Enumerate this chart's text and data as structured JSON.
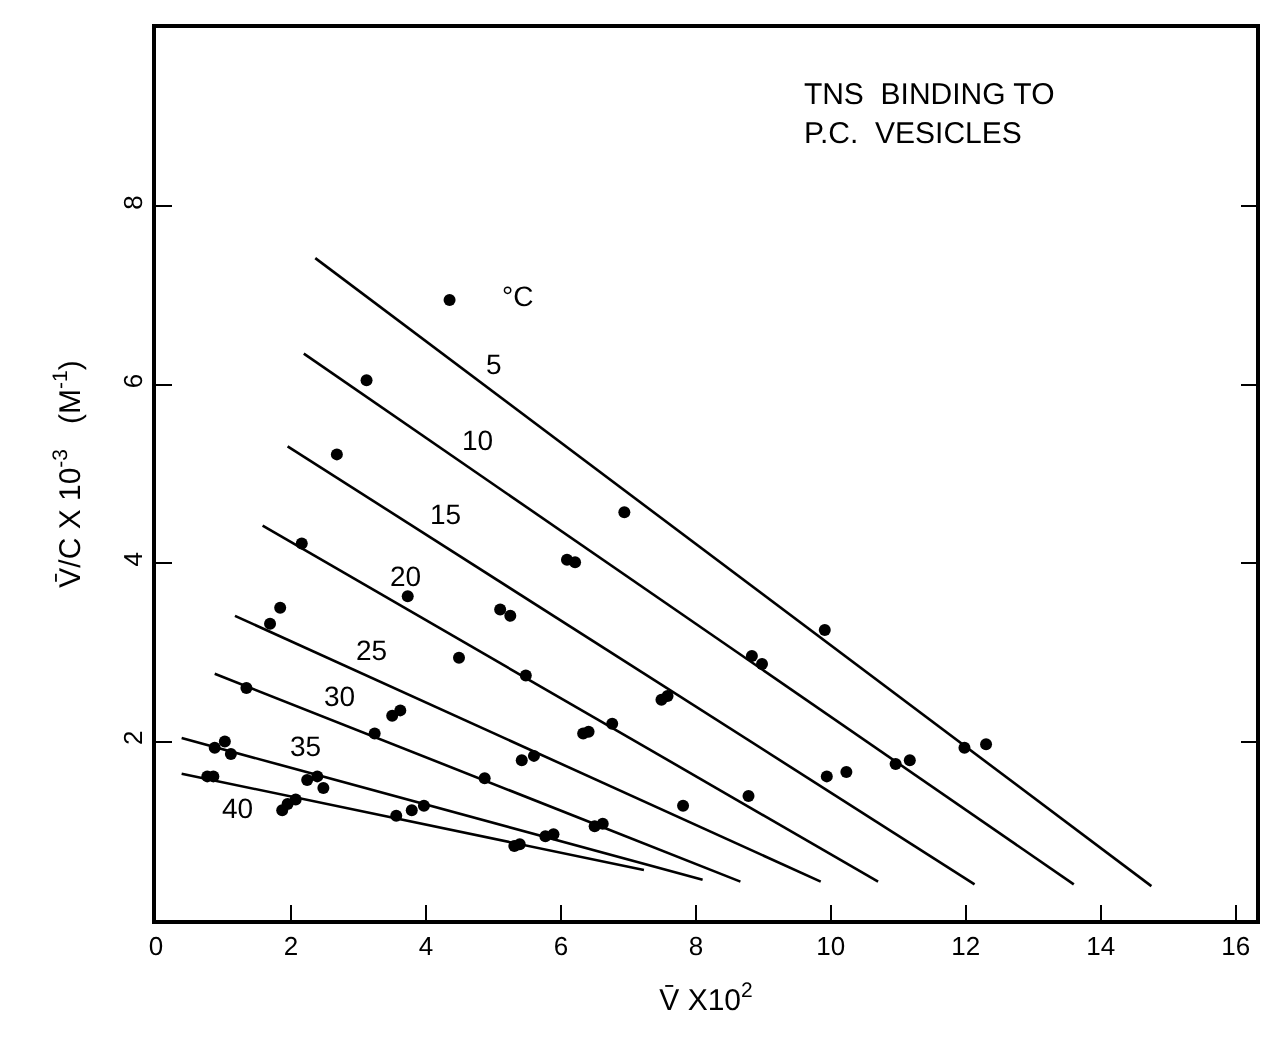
{
  "chart_data": {
    "type": "scatter",
    "title": "TNS  BINDING TO\nP.C.  VESICLES",
    "xlabel": "V̄ X10$^{2}$",
    "ylabel": "V̄/C X 10$^{-3}$   (M$^{-1}$)",
    "xlim": [
      0,
      16.3
    ],
    "ylim": [
      0,
      10
    ],
    "xticks": [
      0,
      2,
      4,
      6,
      8,
      10,
      12,
      14,
      16
    ],
    "yticks": [
      2,
      4,
      6,
      8
    ],
    "grid": false,
    "legend": false,
    "series": [
      {
        "marker": "circle",
        "color": "#000000",
        "x": [
          4.35,
          6.94,
          9.91,
          11.98,
          12.3
        ],
        "values": [
          6.95,
          4.57,
          3.25,
          1.93,
          1.97
        ]
      },
      {
        "marker": "circle",
        "color": "#000000",
        "x": [
          3.12,
          6.09,
          6.21,
          8.83,
          8.98,
          10.96,
          11.17
        ],
        "values": [
          6.05,
          4.04,
          4.01,
          2.96,
          2.87,
          1.75,
          1.79
        ]
      },
      {
        "marker": "circle",
        "color": "#000000",
        "x": [
          2.68,
          5.1,
          5.25,
          7.49,
          7.58,
          9.94,
          10.23
        ],
        "values": [
          5.22,
          3.48,
          3.41,
          2.47,
          2.51,
          1.61,
          1.66
        ]
      },
      {
        "marker": "circle",
        "color": "#000000",
        "x": [
          2.16,
          3.73,
          4.49,
          5.48,
          6.76,
          8.78
        ],
        "values": [
          4.22,
          3.63,
          2.94,
          2.74,
          2.2,
          1.39
        ]
      },
      {
        "marker": "circle",
        "color": "#000000",
        "x": [
          1.69,
          1.84,
          3.5,
          3.62,
          5.42,
          5.6,
          6.33,
          6.41,
          7.81
        ],
        "values": [
          3.32,
          3.5,
          2.29,
          2.35,
          1.79,
          1.84,
          2.09,
          2.11,
          1.28
        ]
      },
      {
        "marker": "circle",
        "color": "#000000",
        "x": [
          1.34,
          3.24,
          4.87,
          6.5,
          6.62
        ],
        "values": [
          2.6,
          2.09,
          1.59,
          1.05,
          1.08
        ]
      },
      {
        "marker": "circle",
        "color": "#000000",
        "x": [
          0.87,
          1.02,
          1.11,
          2.24,
          2.39,
          2.48,
          3.56,
          3.79,
          3.97,
          5.77,
          5.89
        ],
        "values": [
          1.93,
          2.0,
          1.86,
          1.57,
          1.61,
          1.48,
          1.17,
          1.23,
          1.28,
          0.94,
          0.96
        ]
      },
      {
        "marker": "circle",
        "color": "#000000",
        "x": [
          0.76,
          0.85,
          1.87,
          1.95,
          2.07,
          5.31,
          5.39
        ],
        "values": [
          1.61,
          1.61,
          1.23,
          1.3,
          1.35,
          0.83,
          0.85
        ]
      },
      {
        "type": "line",
        "name": "5",
        "marker": "none",
        "color": "#000000",
        "x": [
          2.36,
          14.75
        ],
        "values": [
          7.42,
          0.38
        ]
      },
      {
        "type": "line",
        "name": "10",
        "marker": "none",
        "color": "#000000",
        "x": [
          2.19,
          13.6
        ],
        "values": [
          6.35,
          0.4
        ]
      },
      {
        "type": "line",
        "name": "15",
        "marker": "none",
        "color": "#000000",
        "x": [
          1.95,
          12.13
        ],
        "values": [
          5.31,
          0.4
        ]
      },
      {
        "type": "line",
        "name": "20",
        "marker": "none",
        "color": "#000000",
        "x": [
          1.58,
          10.7
        ],
        "values": [
          4.42,
          0.43
        ]
      },
      {
        "type": "line",
        "name": "25",
        "marker": "none",
        "color": "#000000",
        "x": [
          1.17,
          9.85
        ],
        "values": [
          3.41,
          0.43
        ]
      },
      {
        "type": "line",
        "name": "30",
        "marker": "none",
        "color": "#000000",
        "x": [
          0.87,
          8.66
        ],
        "values": [
          2.76,
          0.43
        ]
      },
      {
        "type": "line",
        "name": "35",
        "marker": "none",
        "color": "#000000",
        "x": [
          0.38,
          8.1
        ],
        "values": [
          2.04,
          0.45
        ]
      },
      {
        "type": "line",
        "name": "40",
        "marker": "none",
        "color": "#000000",
        "x": [
          0.38,
          7.23
        ],
        "values": [
          1.64,
          0.56
        ]
      }
    ],
    "annotations": [
      "°C"
    ]
  }
}
